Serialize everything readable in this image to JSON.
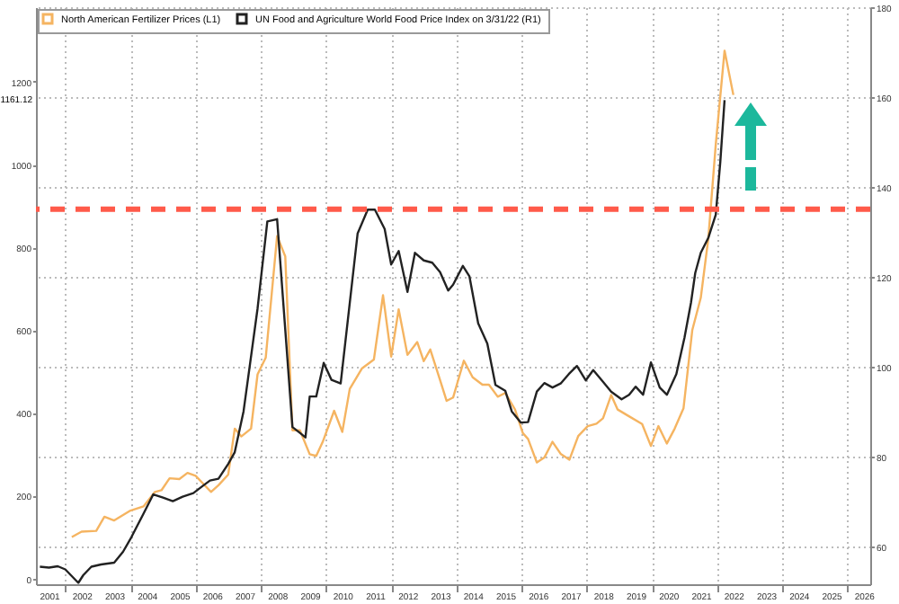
{
  "chart_data": {
    "type": "line",
    "legend": "top left",
    "grid": true,
    "xlim": [
      2001.1,
      2026.7
    ],
    "xticks": [
      {
        "value": 2001.5,
        "label": "2001"
      },
      {
        "value": 2002.5,
        "label": "2002"
      },
      {
        "value": 2003.5,
        "label": "2003"
      },
      {
        "value": 2004.5,
        "label": "2004"
      },
      {
        "value": 2005.5,
        "label": "2005"
      },
      {
        "value": 2006.5,
        "label": "2006"
      },
      {
        "value": 2007.5,
        "label": "2007"
      },
      {
        "value": 2008.5,
        "label": "2008"
      },
      {
        "value": 2009.5,
        "label": "2009"
      },
      {
        "value": 2010.5,
        "label": "2010"
      },
      {
        "value": 2011.5,
        "label": "2011"
      },
      {
        "value": 2012.5,
        "label": "2012"
      },
      {
        "value": 2013.5,
        "label": "2013"
      },
      {
        "value": 2014.5,
        "label": "2014"
      },
      {
        "value": 2015.5,
        "label": "2015"
      },
      {
        "value": 2016.5,
        "label": "2016"
      },
      {
        "value": 2017.5,
        "label": "2017"
      },
      {
        "value": 2018.5,
        "label": "2018"
      },
      {
        "value": 2019.5,
        "label": "2019"
      },
      {
        "value": 2020.5,
        "label": "2020"
      },
      {
        "value": 2021.5,
        "label": "2021"
      },
      {
        "value": 2022.5,
        "label": "2022"
      },
      {
        "value": 2023.5,
        "label": "2023"
      },
      {
        "value": 2024.5,
        "label": "2024"
      },
      {
        "value": 2025.5,
        "label": "2025"
      },
      {
        "value": 2026.5,
        "label": "2026"
      },
      {
        "value": 2002,
        "label": null
      },
      {
        "value": 2004,
        "label": null
      },
      {
        "value": 2006,
        "label": null
      },
      {
        "value": 2008,
        "label": null
      },
      {
        "value": 2010,
        "label": null
      },
      {
        "value": 2012,
        "label": null
      },
      {
        "value": 2014,
        "label": null
      },
      {
        "value": 2016,
        "label": null
      },
      {
        "value": 2018,
        "label": null
      },
      {
        "value": 2020,
        "label": null
      },
      {
        "value": 2022,
        "label": null
      },
      {
        "value": 2024,
        "label": null
      },
      {
        "value": 2026,
        "label": null
      }
    ],
    "ylim": [
      -14,
      1380
    ],
    "yticks": [
      0,
      200,
      400,
      600,
      800,
      1000,
      1200
    ],
    "y2lim": [
      51.5,
      180
    ],
    "y2ticks": [
      60,
      80,
      100,
      120,
      140,
      160,
      180
    ],
    "series": [
      {
        "name": "North American Fertilizer Prices (L1)",
        "color": "#f5b461",
        "x": [
          2002.2,
          2002.5,
          2002.95,
          2003.2,
          2003.5,
          2004.0,
          2004.4,
          2004.75,
          2004.95,
          2005.2,
          2005.5,
          2005.75,
          2006.0,
          2006.47,
          2006.7,
          2007.0,
          2007.2,
          2007.4,
          2007.7,
          2007.9,
          2008.15,
          2008.5,
          2008.75,
          2008.97,
          2009.2,
          2009.5,
          2009.7,
          2009.9,
          2010.25,
          2010.5,
          2010.73,
          2011.1,
          2011.47,
          2011.75,
          2012.0,
          2012.23,
          2012.5,
          2012.8,
          2013.0,
          2013.2,
          2013.5,
          2013.7,
          2013.9,
          2014.23,
          2014.5,
          2014.8,
          2015.0,
          2015.27,
          2015.5,
          2015.8,
          2016.04,
          2016.2,
          2016.47,
          2016.7,
          2016.95,
          2017.2,
          2017.47,
          2017.74,
          2018.03,
          2018.3,
          2018.5,
          2018.75,
          2018.95,
          2019.25,
          2019.7,
          2019.97,
          2020.2,
          2020.46,
          2020.7,
          2020.97,
          2021.24,
          2021.5,
          2021.73,
          2021.96,
          2022.23,
          2022.5
        ],
        "values": [
          100,
          113,
          115,
          149,
          140,
          164,
          174,
          209,
          213,
          242,
          240,
          255,
          248,
          209,
          225,
          251,
          362,
          343,
          362,
          493,
          533,
          827,
          778,
          358,
          358,
          300,
          296,
          330,
          405,
          354,
          458,
          507,
          529,
          684,
          536,
          650,
          540,
          571,
          525,
          553,
          479,
          429,
          437,
          526,
          486,
          468,
          468,
          439,
          448,
          408,
          351,
          337,
          280,
          292,
          330,
          301,
          287,
          344,
          368,
          374,
          387,
          443,
          408,
          394,
          373,
          320,
          368,
          326,
          362,
          411,
          600,
          678,
          820,
          1048,
          1275,
          1168
        ]
      },
      {
        "name": "UN Food and Agriculture World Food Price Index  on 3/31/22 (R1)",
        "color": "#222222",
        "axis": "y2",
        "x": [
          2001.22,
          2001.5,
          2001.77,
          2002.0,
          2002.4,
          2002.55,
          2002.8,
          2003.1,
          2003.5,
          2003.77,
          2004.03,
          2004.4,
          2004.7,
          2005.0,
          2005.3,
          2005.6,
          2005.93,
          2006.2,
          2006.44,
          2006.7,
          2007.0,
          2007.2,
          2007.47,
          2007.73,
          2007.9,
          2008.2,
          2008.5,
          2008.97,
          2009.2,
          2009.37,
          2009.5,
          2009.7,
          2009.93,
          2010.17,
          2010.45,
          2010.97,
          2011.28,
          2011.5,
          2011.8,
          2012.0,
          2012.23,
          2012.5,
          2012.73,
          2013.0,
          2013.26,
          2013.5,
          2013.75,
          2013.9,
          2014.2,
          2014.4,
          2014.67,
          2014.95,
          2015.2,
          2015.5,
          2015.7,
          2015.98,
          2016.2,
          2016.47,
          2016.7,
          2016.95,
          2017.2,
          2017.45,
          2017.7,
          2017.97,
          2018.2,
          2018.5,
          2018.75,
          2019.07,
          2019.3,
          2019.5,
          2019.73,
          2019.97,
          2020.24,
          2020.46,
          2020.75,
          2021.0,
          2021.2,
          2021.33,
          2021.5,
          2021.73,
          2021.96,
          2022.1,
          2022.23
        ],
        "values": [
          55.4,
          55.2,
          55.5,
          54.8,
          51.8,
          53.5,
          55.4,
          55.9,
          56.3,
          58.7,
          62,
          67.2,
          71.5,
          70.8,
          70,
          71,
          71.8,
          73.3,
          74.6,
          75,
          78.3,
          80.9,
          90,
          103.8,
          112.9,
          132.3,
          132.8,
          86.5,
          85.2,
          84.2,
          93.3,
          93.3,
          100.8,
          97,
          96.2,
          129.6,
          134.9,
          134.9,
          130.6,
          122.7,
          125.7,
          116.6,
          125.3,
          123.6,
          123.1,
          121,
          116.9,
          118.2,
          122.4,
          120.1,
          109.6,
          105.1,
          95.9,
          94.6,
          90,
          87.5,
          87.6,
          94.4,
          96.3,
          95.3,
          96.2,
          98.3,
          100.1,
          96.9,
          99.2,
          96.6,
          94.4,
          92.7,
          93.7,
          95.5,
          93.7,
          100.9,
          95.3,
          93.7,
          98.3,
          106.4,
          114.2,
          120.8,
          125.3,
          128.6,
          133.8,
          145.6,
          159.3
        ]
      }
    ],
    "ref_lines": [
      {
        "axis": "y2",
        "value": 135,
        "color": "#ff5a4a",
        "line_style": "dashed"
      }
    ],
    "annotations": [
      "1161.12"
    ]
  }
}
